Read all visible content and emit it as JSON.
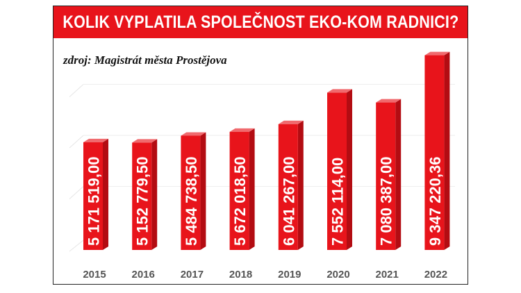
{
  "header": {
    "title": "KOLIK VYPLATILA SPOLEČNOST EKO-KOM RADNICI?",
    "source": "zdroj: Magistrát města Prostějova"
  },
  "colors": {
    "banner": "#e8141b",
    "bar_front": "#e8141b",
    "bar_top": "#f06a6e",
    "bar_side": "#b30c12",
    "year_text": "#555555"
  },
  "chart_data": {
    "type": "bar",
    "title": "KOLIK VYPLATILA SPOLEČNOST EKO-KOM RADNICI?",
    "categories": [
      "2015",
      "2016",
      "2017",
      "2018",
      "2019",
      "2020",
      "2021",
      "2022"
    ],
    "values": [
      5171519.0,
      5152779.5,
      5484738.5,
      5672018.5,
      6041267.0,
      7552114.0,
      7080387.0,
      9347220.36
    ],
    "value_labels": [
      "5 171 519,00",
      "5 152 779,50",
      "5 484 738,50",
      "5 672 018,50",
      "6 041 267,00",
      "7 552 114,00",
      "7 080 387,00",
      "9 347 220,36"
    ],
    "xlabel": "",
    "ylabel": "",
    "ylim": [
      0,
      9800000
    ],
    "grid": true,
    "legend": "none"
  }
}
